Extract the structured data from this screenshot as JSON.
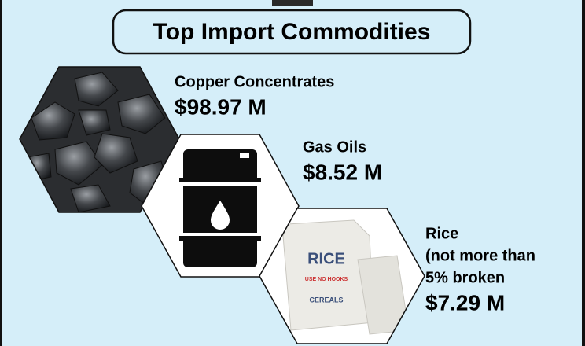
{
  "title": "Top Import Commodities",
  "items": [
    {
      "name_lines": [
        "Copper Concentrates"
      ],
      "value": "$98.97 M"
    },
    {
      "name_lines": [
        "Gas Oils"
      ],
      "value": "$8.52 M"
    },
    {
      "name_lines": [
        "Rice",
        "(not more than",
        "5% broken"
      ],
      "value": "$7.29 M"
    }
  ]
}
